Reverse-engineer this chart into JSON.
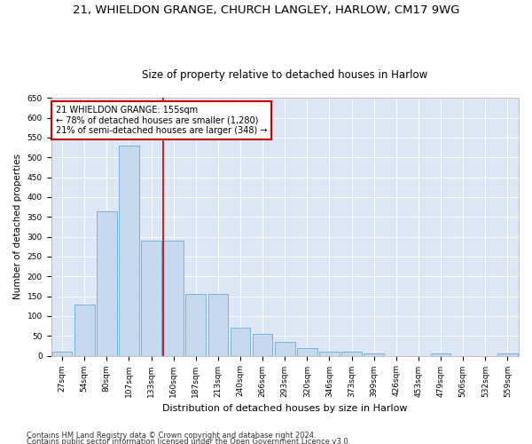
{
  "title1": "21, WHIELDON GRANGE, CHURCH LANGLEY, HARLOW, CM17 9WG",
  "title2": "Size of property relative to detached houses in Harlow",
  "xlabel": "Distribution of detached houses by size in Harlow",
  "ylabel": "Number of detached properties",
  "categories": [
    "27sqm",
    "54sqm",
    "80sqm",
    "107sqm",
    "133sqm",
    "160sqm",
    "187sqm",
    "213sqm",
    "240sqm",
    "266sqm",
    "293sqm",
    "320sqm",
    "346sqm",
    "373sqm",
    "399sqm",
    "426sqm",
    "453sqm",
    "479sqm",
    "506sqm",
    "532sqm",
    "559sqm"
  ],
  "values": [
    10,
    130,
    365,
    530,
    290,
    290,
    155,
    155,
    70,
    55,
    35,
    20,
    10,
    10,
    5,
    0,
    0,
    5,
    0,
    0,
    5
  ],
  "bar_color": "#c5d8ee",
  "bar_edge_color": "#6aadd5",
  "vline_x_index": 5,
  "vline_color": "#cc0000",
  "annotation_text": "21 WHIELDON GRANGE: 155sqm\n← 78% of detached houses are smaller (1,280)\n21% of semi-detached houses are larger (348) →",
  "annotation_box_facecolor": "#ffffff",
  "annotation_box_edgecolor": "#cc0000",
  "ylim": [
    0,
    650
  ],
  "yticks": [
    0,
    50,
    100,
    150,
    200,
    250,
    300,
    350,
    400,
    450,
    500,
    550,
    600,
    650
  ],
  "bg_color": "#dce6f5",
  "grid_color": "#ffffff",
  "footer1": "Contains HM Land Registry data © Crown copyright and database right 2024.",
  "footer2": "Contains public sector information licensed under the Open Government Licence v3.0.",
  "title1_fontsize": 9.5,
  "title2_fontsize": 8.5,
  "xlabel_fontsize": 8,
  "ylabel_fontsize": 7.5,
  "tick_fontsize": 6.5,
  "annotation_fontsize": 7,
  "footer_fontsize": 6
}
